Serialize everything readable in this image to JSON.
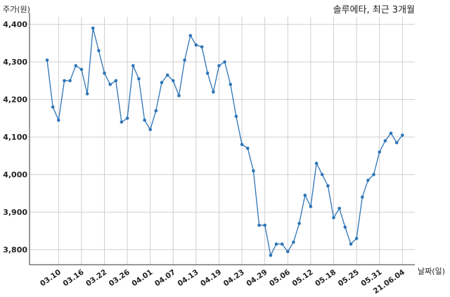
{
  "chart_data": {
    "type": "line",
    "title": "솔루에타, 최근 3개월",
    "ylabel": "주가(원)",
    "xlabel": "날짜(일)",
    "ylim": [
      3760,
      4420
    ],
    "yticks": [
      3800,
      3900,
      4000,
      4100,
      4200,
      4300,
      4400
    ],
    "ytick_labels": [
      "3,800",
      "3,900",
      "4,000",
      "4,100",
      "4,200",
      "4,300",
      "4,400"
    ],
    "grid": true,
    "line_color": "#2e75b6",
    "xtick_labels": [
      {
        "index": 2,
        "label": "03.10"
      },
      {
        "index": 6,
        "label": "03.16"
      },
      {
        "index": 10,
        "label": "03.22"
      },
      {
        "index": 14,
        "label": "03.26"
      },
      {
        "index": 18,
        "label": "04.01"
      },
      {
        "index": 22,
        "label": "04.07"
      },
      {
        "index": 26,
        "label": "04.13"
      },
      {
        "index": 30,
        "label": "04.19"
      },
      {
        "index": 34,
        "label": "04.23"
      },
      {
        "index": 38,
        "label": "04.29"
      },
      {
        "index": 42,
        "label": "05.06"
      },
      {
        "index": 46,
        "label": "05.12"
      },
      {
        "index": 50,
        "label": "05.18"
      },
      {
        "index": 54,
        "label": "05.25"
      },
      {
        "index": 58,
        "label": "05.31"
      },
      {
        "index": 62,
        "label": "21.06.04"
      }
    ],
    "values": [
      4305,
      4180,
      4145,
      4250,
      4250,
      4290,
      4280,
      4215,
      4390,
      4330,
      4270,
      4240,
      4250,
      4140,
      4150,
      4290,
      4255,
      4145,
      4120,
      4170,
      4245,
      4265,
      4250,
      4210,
      4305,
      4370,
      4345,
      4340,
      4270,
      4220,
      4290,
      4300,
      4240,
      4155,
      4080,
      4070,
      4010,
      3865,
      3865,
      3785,
      3815,
      3815,
      3795,
      3820,
      3870,
      3945,
      3915,
      4030,
      4000,
      3970,
      3885,
      3910,
      3860,
      3815,
      3830,
      3940,
      3985,
      4000,
      4060,
      4090,
      4110,
      4085,
      4105
    ]
  }
}
